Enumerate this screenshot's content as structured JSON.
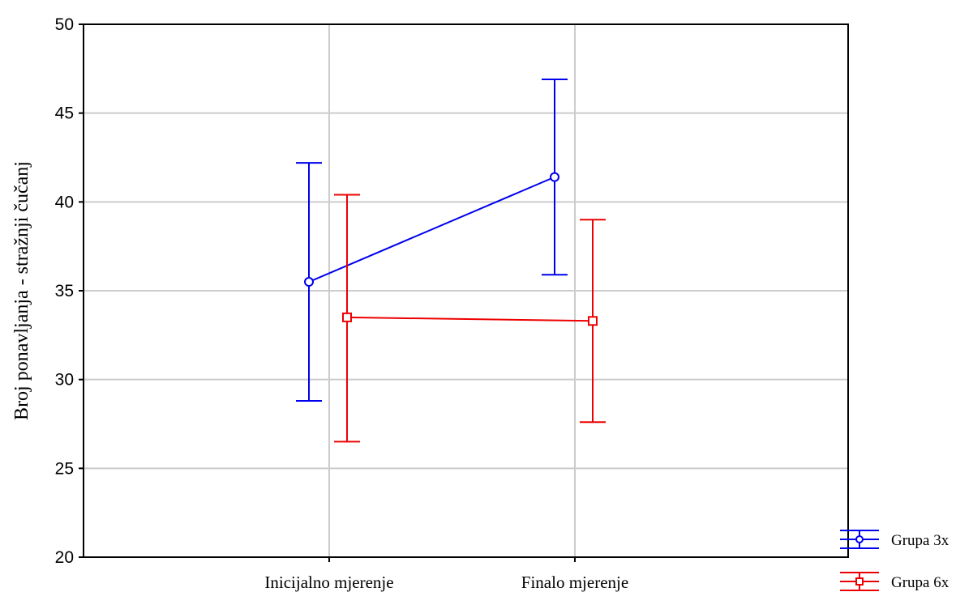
{
  "chart_data": {
    "type": "line",
    "title": "",
    "xlabel": "",
    "ylabel": "Broj ponavljanja - stražnji čučanj",
    "categories": [
      "Inicijalno mjerenje",
      "Finalo mjerenje"
    ],
    "ylim": [
      20,
      50
    ],
    "yticks": [
      20,
      25,
      30,
      35,
      40,
      45,
      50
    ],
    "grid": true,
    "legend_position": "bottom-right",
    "series": [
      {
        "name": "Grupa 3x",
        "color": "#0000ee",
        "marker": "circle",
        "values": [
          35.5,
          41.4
        ],
        "lower": [
          28.8,
          35.9
        ],
        "upper": [
          42.2,
          46.9
        ]
      },
      {
        "name": "Grupa 6x",
        "color": "#ee0000",
        "marker": "square",
        "values": [
          33.5,
          33.3
        ],
        "lower": [
          26.5,
          27.6
        ],
        "upper": [
          40.4,
          39.0
        ]
      }
    ]
  }
}
